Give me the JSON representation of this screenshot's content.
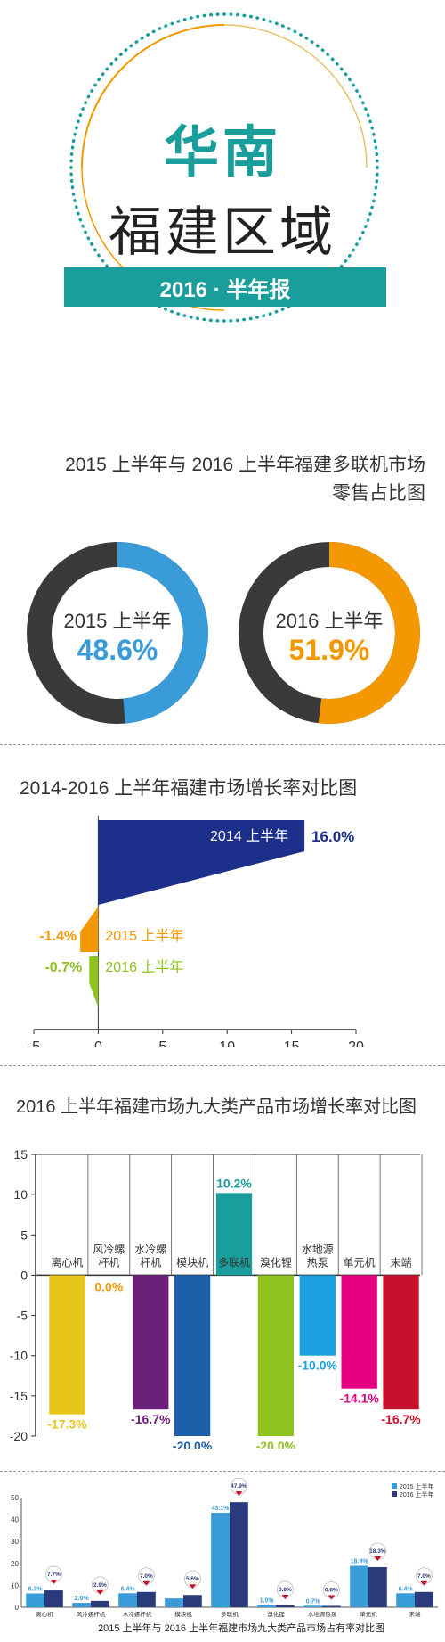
{
  "header": {
    "region": "华南",
    "area": "福建区域",
    "banner": "2016 · 半年报"
  },
  "share_section": {
    "title_line1": "2015 上半年与 2016 上半年福建多联机市场",
    "title_line2": "零售占比图"
  },
  "growth_section": {
    "title": "2014-2016 上半年福建市场增长率对比图"
  },
  "category_section": {
    "title": "2016 上半年福建市场九大类产品市场增长率对比图"
  },
  "occupancy_section": {
    "title": "2015 上半年与 2016 上半年福建市场九大类产品市场占有率对比图"
  },
  "colors": {
    "teal": "#1a9e9b",
    "orange": "#f39800",
    "blue": "#3a9bd9",
    "navy": "#1c2f8a",
    "green": "#8dc21f",
    "dark": "#3a3a3a"
  },
  "chart_data": [
    {
      "type": "pie",
      "categories": [
        "2015 上半年",
        "2016 上半年"
      ],
      "values": [
        48.6,
        51.9
      ],
      "labels": [
        "48.6%",
        "51.9%"
      ],
      "colors": [
        "#3a9bd9",
        "#f39800"
      ]
    },
    {
      "type": "bar",
      "orientation": "horizontal",
      "categories": [
        "2014 上半年",
        "2015 上半年",
        "2016 上半年"
      ],
      "values": [
        16.0,
        -1.4,
        -0.7
      ],
      "labels": [
        "16.0%",
        "-1.4%",
        "-0.7%"
      ],
      "colors": [
        "#1c2f8a",
        "#f39800",
        "#8dc21f"
      ],
      "xlim": [
        -5,
        20
      ],
      "xticks": [
        -5,
        0,
        5,
        10,
        15,
        20
      ]
    },
    {
      "type": "bar",
      "categories": [
        "离心机",
        "风冷螺杆机",
        "水冷螺杆机",
        "模块机",
        "多联机",
        "溴化锂",
        "水地源热泵",
        "单元机",
        "末端"
      ],
      "values": [
        -17.3,
        0.0,
        -16.7,
        -20.0,
        10.2,
        -20.0,
        -10.0,
        -14.1,
        -16.7
      ],
      "labels": [
        "-17.3%",
        "0.0%",
        "-16.7%",
        "-20.0%",
        "10.2%",
        "-20.0%",
        "-10.0%",
        "-14.1%",
        "-16.7%"
      ],
      "colors": [
        "#e8c619",
        "#f39800",
        "#6a2078",
        "#1d5fa8",
        "#1a9e9b",
        "#8dc21f",
        "#1aa0e0",
        "#e4007f",
        "#c8102e"
      ],
      "ylim": [
        -20,
        15
      ],
      "yticks": [
        15,
        10,
        5,
        0,
        -5,
        -10,
        -15,
        -20
      ]
    },
    {
      "type": "bar",
      "categories": [
        "离心机",
        "风冷螺杆机",
        "水冷螺杆机",
        "模块机",
        "多联机",
        "溴化锂",
        "水地源热泵",
        "单元机",
        "末端"
      ],
      "series": [
        {
          "name": "2015 上半年",
          "values": [
            6.3,
            2.0,
            6.4,
            4.0,
            43.1,
            1.0,
            0.7,
            18.9,
            6.4
          ],
          "labels": [
            "6.3%",
            "2.0%",
            "6.4%",
            "",
            "43.1%",
            "1.0%",
            "0.7%",
            "18.9%",
            "6.4%"
          ]
        },
        {
          "name": "2016 上半年",
          "values": [
            7.7,
            2.9,
            7.0,
            5.6,
            47.9,
            0.8,
            0.6,
            18.3,
            7.0
          ],
          "labels": [
            "7.7%",
            "2.9%",
            "7.0%",
            "5.6%",
            "47.9%",
            "0.8%",
            "0.6%",
            "18.3%",
            "7.0%"
          ]
        }
      ],
      "colors": [
        "#3a9bd9",
        "#2b3a7a"
      ],
      "ylim": [
        0,
        50
      ],
      "yticks": [
        50,
        40,
        30,
        20,
        10,
        0
      ]
    }
  ]
}
